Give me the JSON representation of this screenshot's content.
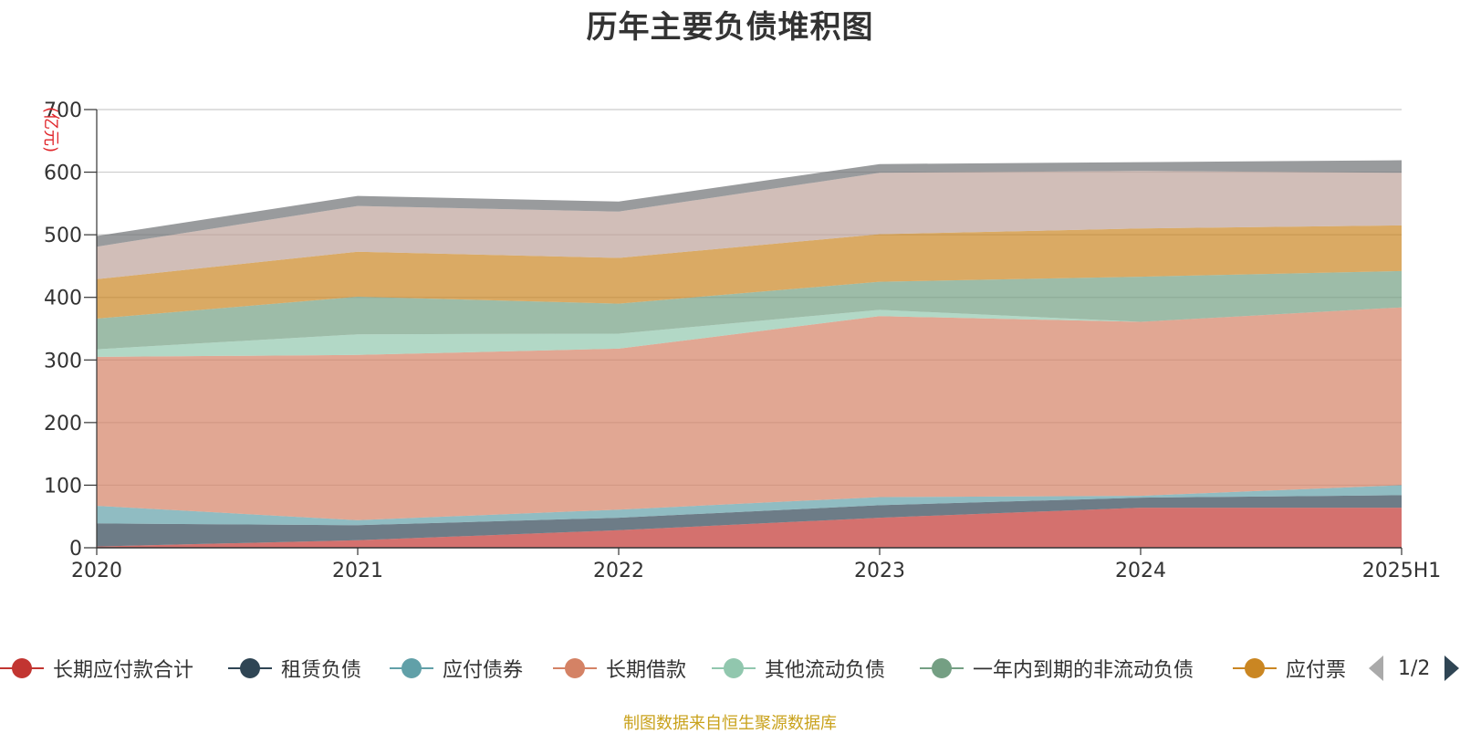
{
  "chart_data": {
    "type": "area",
    "stacked": true,
    "title": "历年主要负债堆积图",
    "ylabel": "(亿元)",
    "categories": [
      "2020",
      "2021",
      "2022",
      "2023",
      "2024",
      "2025H1"
    ],
    "ylim": [
      0,
      700
    ],
    "yticks": [
      0,
      100,
      200,
      300,
      400,
      500,
      600,
      700
    ],
    "grid": true,
    "legend_position": "bottom",
    "series": [
      {
        "name": "长期应付款合计",
        "color": "#c23531",
        "values": [
          2,
          12,
          28,
          48,
          64,
          64
        ]
      },
      {
        "name": "租赁负债",
        "color": "#2f4554",
        "values": [
          37,
          24,
          20,
          20,
          16,
          20
        ]
      },
      {
        "name": "应付债券",
        "color": "#61a0a8",
        "values": [
          28,
          8,
          13,
          13,
          3,
          16
        ]
      },
      {
        "name": "长期借款",
        "color": "#d48265",
        "values": [
          238,
          264,
          257,
          289,
          278,
          284
        ]
      },
      {
        "name": "其他流动负债",
        "color": "#91c7ae",
        "values": [
          12,
          33,
          24,
          10,
          0,
          0
        ]
      },
      {
        "name": "一年内到期的非流动负债",
        "color": "#749f83",
        "values": [
          49,
          60,
          48,
          45,
          72,
          58
        ]
      },
      {
        "name": "应付票",
        "color": "#ca8622",
        "values": [
          63,
          72,
          73,
          76,
          77,
          73
        ]
      },
      {
        "name": "",
        "color": "#bda29a",
        "values": [
          52,
          73,
          74,
          98,
          92,
          84
        ]
      },
      {
        "name": "",
        "color": "#6e7074",
        "values": [
          17,
          16,
          16,
          14,
          14,
          20
        ]
      }
    ]
  },
  "legend": {
    "items": [
      {
        "label": "长期应付款合计",
        "color": "#c23531"
      },
      {
        "label": "租赁负债",
        "color": "#2f4554"
      },
      {
        "label": "应付债券",
        "color": "#61a0a8"
      },
      {
        "label": "长期借款",
        "color": "#d48265"
      },
      {
        "label": "其他流动负债",
        "color": "#91c7ae"
      },
      {
        "label": "一年内到期的非流动负债",
        "color": "#749f83"
      },
      {
        "label": "应付票",
        "color": "#ca8622"
      }
    ],
    "page_indicator": "1/2"
  },
  "footer": {
    "note": "制图数据来自恒生聚源数据库"
  }
}
